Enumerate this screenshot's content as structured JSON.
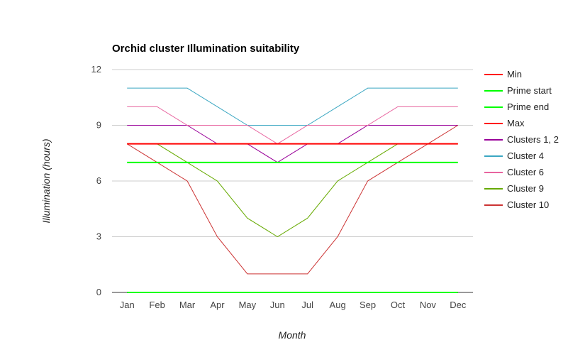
{
  "chart_data": {
    "type": "line",
    "title": "Orchid cluster Illumination suitability",
    "xlabel": "Month",
    "ylabel": "Illumination (hours)",
    "categories": [
      "Jan",
      "Feb",
      "Mar",
      "Apr",
      "May",
      "Jun",
      "Jul",
      "Aug",
      "Sep",
      "Oct",
      "Nov",
      "Dec"
    ],
    "ylim": [
      0,
      12
    ],
    "yticks": [
      "0",
      "3",
      "6",
      "9",
      "12"
    ],
    "grid": true,
    "legend_position": "right",
    "series": [
      {
        "name": "Min",
        "color": "#ff0000",
        "bold": true,
        "values": [
          0,
          0,
          0,
          0,
          0,
          0,
          0,
          0,
          0,
          0,
          0,
          0
        ]
      },
      {
        "name": "Prime start",
        "color": "#00ff00",
        "bold": true,
        "values": [
          7,
          7,
          7,
          7,
          7,
          7,
          7,
          7,
          7,
          7,
          7,
          7
        ]
      },
      {
        "name": "Prime end",
        "color": "#00ff00",
        "bold": true,
        "values": [
          0,
          0,
          0,
          0,
          0,
          0,
          0,
          0,
          0,
          0,
          0,
          0
        ]
      },
      {
        "name": "Max",
        "color": "#ff0000",
        "bold": true,
        "values": [
          8,
          8,
          8,
          8,
          8,
          8,
          8,
          8,
          8,
          8,
          8,
          8
        ]
      },
      {
        "name": "Clusters 1, 2",
        "color": "#990099",
        "bold": false,
        "values": [
          9,
          9,
          9,
          8,
          8,
          7,
          8,
          8,
          9,
          9,
          9,
          9
        ]
      },
      {
        "name": "Cluster 4",
        "color": "#3ba7c2",
        "bold": false,
        "values": [
          11,
          11,
          11,
          10,
          9,
          9,
          9,
          10,
          11,
          11,
          11,
          11
        ]
      },
      {
        "name": "Cluster 6",
        "color": "#e8649f",
        "bold": false,
        "values": [
          10,
          10,
          9,
          9,
          9,
          8,
          9,
          9,
          9,
          10,
          10,
          10
        ]
      },
      {
        "name": "Cluster 9",
        "color": "#66aa00",
        "bold": false,
        "values": [
          8,
          8,
          7,
          6,
          4,
          3,
          4,
          6,
          7,
          8,
          8,
          8
        ]
      },
      {
        "name": "Cluster 10",
        "color": "#cc3333",
        "bold": false,
        "values": [
          8,
          7,
          6,
          3,
          1,
          1,
          1,
          3,
          6,
          7,
          8,
          9
        ]
      }
    ]
  }
}
